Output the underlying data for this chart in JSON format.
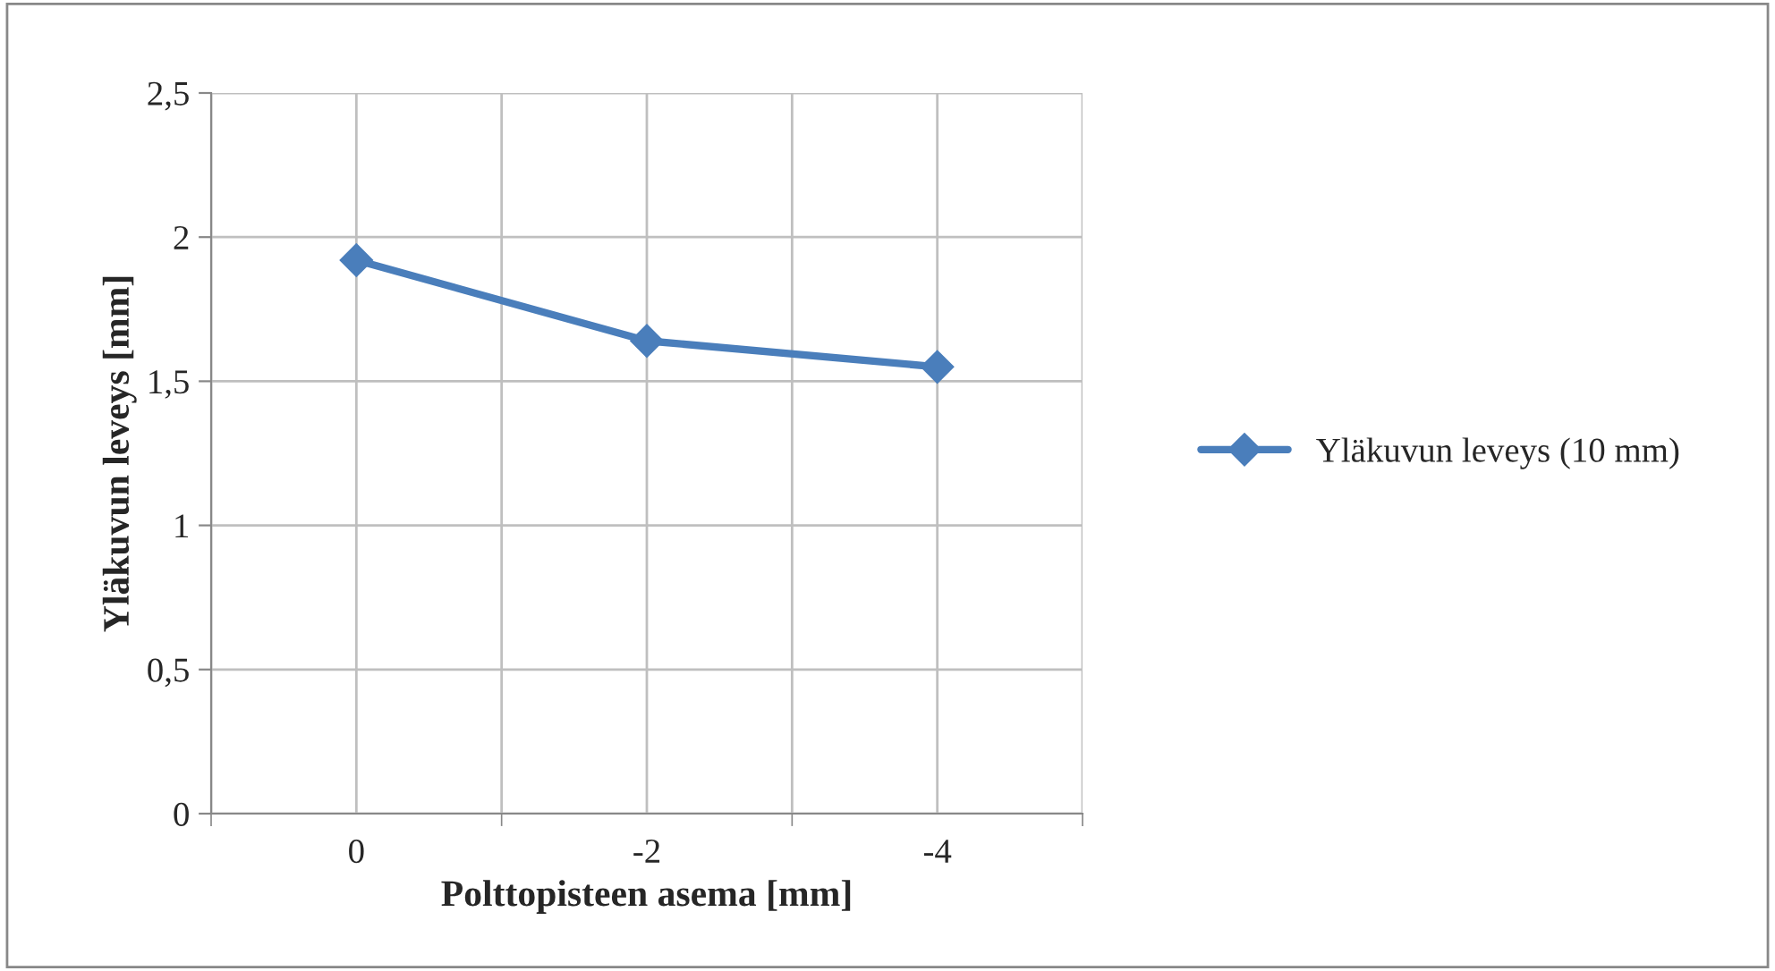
{
  "chart_data": {
    "type": "line",
    "xlabel": "Polttopisteen asema [mm]",
    "ylabel": "Yläkuvun leveys [mm]",
    "categories": [
      "0",
      "-2",
      "-4"
    ],
    "series": [
      {
        "name": "Yläkuvun leveys (10 mm)",
        "color": "#4a7ebb",
        "values": [
          1.92,
          1.64,
          1.55
        ]
      }
    ],
    "ylim": [
      0,
      2.5
    ],
    "yticks": [
      0,
      {
        "value": 0.5,
        "label": "0,5"
      },
      1,
      {
        "value": 1.5,
        "label": "1,5"
      },
      2,
      {
        "value": 2.5,
        "label": "2,5"
      }
    ],
    "grid": true,
    "legend": "right",
    "marker": "diamond",
    "line_style": "solid"
  }
}
